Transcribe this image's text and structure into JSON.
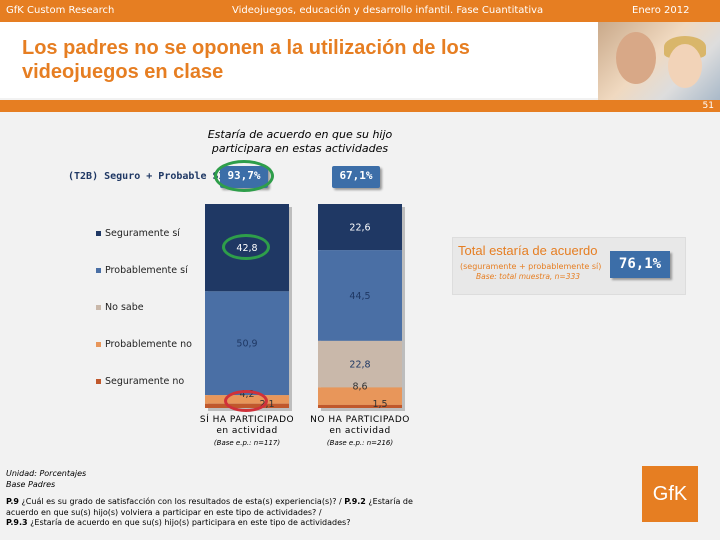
{
  "header": {
    "left": "GfK Custom Research",
    "center": "Videojuegos, educación y desarrollo infantil. Fase Cuantitativa",
    "right": "Enero 2012"
  },
  "slide": {
    "title_line1": "Los padres no se oponen a la utilización de los",
    "title_line2": "videojuegos en clase",
    "page_number": "51"
  },
  "t2b": {
    "label": "(T2B) Seguro + Probable SÍ",
    "values": [
      "93,7%",
      "67,1%"
    ]
  },
  "total": {
    "title": "Total estaría de acuerdo",
    "subtitle": "(seguramente + probablemente sí)",
    "base": "Base: total muestra, n=333",
    "value": "76,1%"
  },
  "footer": {
    "unit_line1": "Unidad: Porcentajes",
    "unit_line2": "Base Padres",
    "q1_num": "P.9",
    "q1_text": "¿Cuál es su grado de satisfacción con los resultados de esta(s) experiencia(s)?",
    "q2_num": "P.9.2",
    "q2_text": "¿Estaría de acuerdo en que su(s) hijo(s) volviera a participar en este tipo de actividades? /",
    "q3_num": "P.9.3",
    "q3_text": "¿Estaría de acuerdo en que su(s) hijo(s) participara en este tipo de actividades?",
    "logo": "GfK"
  },
  "colors": {
    "accent": "#e67e22",
    "seguramente_si": "#1f3864",
    "probablemente_si": "#4a6fa5",
    "no_sabe": "#c9b8aa",
    "probablemente_no": "#e8965a",
    "seguramente_no": "#c0582c"
  },
  "chart_data": {
    "type": "bar",
    "stacked": true,
    "title_line1": "Estaría de acuerdo en que su hijo",
    "title_line2": "participara en estas actividades",
    "categories": [
      {
        "line1": "SÍ HA PARTICIPADO",
        "line2": "en actividad",
        "base": "(Base e.p.: n=117)"
      },
      {
        "line1": "NO HA PARTICIPADO",
        "line2": "en actividad",
        "base": "(Base e.p.: n=216)"
      }
    ],
    "series": [
      {
        "name": "Seguramente sí",
        "values": [
          42.8,
          22.6
        ],
        "labels": [
          "42,8",
          "22,6"
        ]
      },
      {
        "name": "Probablemente sí",
        "values": [
          50.9,
          44.5
        ],
        "labels": [
          "50,9",
          "44,5"
        ]
      },
      {
        "name": "No sabe",
        "values": [
          0,
          22.8
        ],
        "labels": [
          "",
          "22,8"
        ]
      },
      {
        "name": "Probablemente no",
        "values": [
          4.2,
          8.6
        ],
        "labels": [
          "4,2",
          "8,6"
        ]
      },
      {
        "name": "Seguramente no",
        "values": [
          2.1,
          1.5
        ],
        "labels": [
          "2,1",
          "1,5"
        ]
      }
    ],
    "ylim": [
      0,
      100
    ]
  }
}
